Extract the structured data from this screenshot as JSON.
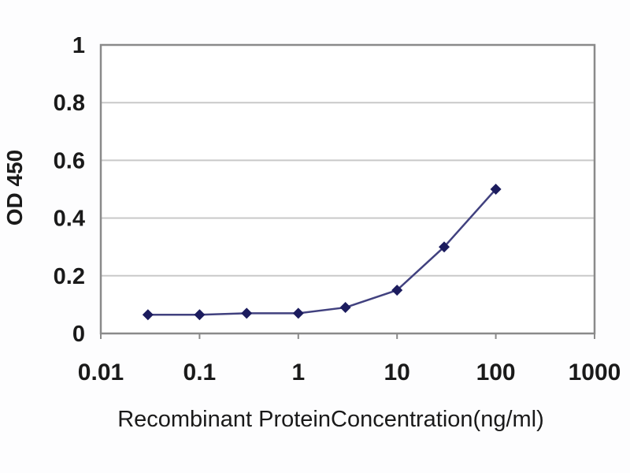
{
  "figure": {
    "background": "#fdfdfe"
  },
  "chart_data": {
    "type": "line",
    "title": "",
    "xlabel": "Recombinant ProteinConcentration(ng/ml)",
    "ylabel": "OD 450",
    "x_scale": "log",
    "y_scale": "linear",
    "xlim": [
      0.01,
      1000
    ],
    "ylim": [
      0,
      1
    ],
    "x_ticks": [
      0.01,
      0.1,
      1,
      10,
      100,
      1000
    ],
    "x_tick_labels": [
      "0.01",
      "0.1",
      "1",
      "10",
      "100",
      "1000"
    ],
    "y_ticks": [
      0,
      0.2,
      0.4,
      0.6,
      0.8,
      1
    ],
    "y_tick_labels": [
      "0",
      "0.2",
      "0.4",
      "0.6",
      "0.8",
      "1"
    ],
    "grid": "horizontal-major-only",
    "legend": "none",
    "series": [
      {
        "marker": "diamond",
        "x": [
          0.03,
          0.1,
          0.3,
          1,
          3,
          10,
          30,
          100
        ],
        "y": [
          0.065,
          0.065,
          0.07,
          0.07,
          0.09,
          0.15,
          0.3,
          0.5
        ]
      }
    ],
    "colors": {
      "line": "#41417f",
      "marker": "#1c1c5e",
      "gridline": "#c9c9c9",
      "frame": "#8a8a8a",
      "text": "#1a1a1a",
      "plot_background": "#ffffff"
    }
  }
}
